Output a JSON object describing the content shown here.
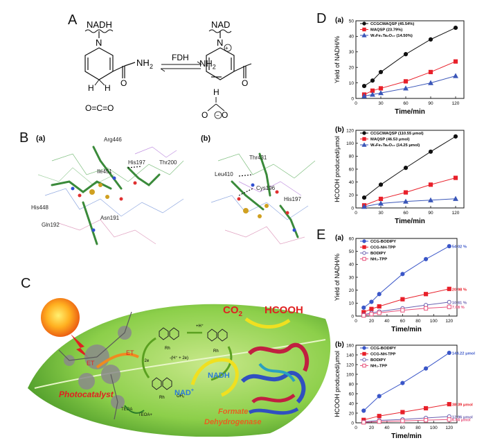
{
  "panel_a": {
    "letter": "A",
    "nadh": "NADH",
    "nad": "NAD",
    "nh2_left": "NH",
    "nh2_right": "NH",
    "sub2": "2",
    "n": "N",
    "h": "H",
    "o": "O",
    "enzyme": "FDH",
    "co2": "O=C=O",
    "plus": "+",
    "minus": "−"
  },
  "panel_b": {
    "letter": "B",
    "sub_a": "(a)",
    "sub_b": "(b)",
    "labels_a": [
      "Arg446",
      "Ile451",
      "His197",
      "Thr200",
      "His448",
      "Gln192",
      "Asn191"
    ],
    "labels_b": [
      "Thr431",
      "Leu410",
      "Cys196",
      "His197"
    ]
  },
  "panel_c": {
    "letter": "C",
    "co2": "CO",
    "co2_sub": "2",
    "hcooh": "HCOOH",
    "nadh": "NADH",
    "nad": "NAD",
    "nad_sup": "+",
    "et1": "ET",
    "et2": "ET",
    "photocatalyst": "Photocatalyst",
    "formate": "Formate",
    "dehydrogenase": "Dehydrogenase",
    "teoa": "TEOA",
    "teoa_plus": "TEOA+",
    "rh": "Rh",
    "plus_2e": "+2e",
    "plus_h": "+H⁺",
    "minus_h2e": "-(H⁺ + 2e)",
    "oh2": "OH₂"
  },
  "panel_d": {
    "letter": "D",
    "colors": {
      "black": "#111111",
      "red": "#e8202a",
      "blue": "#3a56b8"
    }
  },
  "panel_e": {
    "letter": "E",
    "colors": {
      "blue": "#3a56c8",
      "red": "#e8202a",
      "violet": "#6a60b0",
      "pink": "#e8507a"
    }
  },
  "chart_data": [
    {
      "id": "Da",
      "type": "line",
      "sublabel": "(a)",
      "xlabel": "Time/min",
      "ylabel": "Yield of NADH/%",
      "xlim": [
        0,
        130
      ],
      "ylim": [
        0,
        50
      ],
      "xticks": [
        0,
        30,
        60,
        90,
        120
      ],
      "yticks": [
        0,
        10,
        20,
        30,
        40,
        50
      ],
      "legend": "top-left",
      "series": [
        {
          "name": "CCGCMAQSP (45.54%)",
          "color": "#111111",
          "marker": "circle",
          "filled": true,
          "x": [
            10,
            20,
            30,
            60,
            90,
            120
          ],
          "y": [
            8,
            11.5,
            17,
            28.5,
            38,
            45.5
          ]
        },
        {
          "name": "MAQSP (23.79%)",
          "color": "#e8202a",
          "marker": "square",
          "filled": true,
          "x": [
            10,
            20,
            30,
            60,
            90,
            120
          ],
          "y": [
            2.5,
            5,
            6.5,
            11,
            17,
            23.8
          ]
        },
        {
          "name": "W₂Fe₄Ta₂O₁₇ (14.50%)",
          "color": "#3a56b8",
          "marker": "triangle",
          "filled": true,
          "x": [
            10,
            20,
            30,
            60,
            90,
            120
          ],
          "y": [
            1.5,
            2.5,
            3.5,
            6.5,
            10,
            14.5
          ]
        }
      ]
    },
    {
      "id": "Db",
      "type": "line",
      "sublabel": "(b)",
      "xlabel": "Time/min",
      "ylabel": "HCOOH produced/μmol",
      "xlim": [
        0,
        130
      ],
      "ylim": [
        0,
        120
      ],
      "xticks": [
        0,
        30,
        60,
        90,
        120
      ],
      "yticks": [
        0,
        20,
        40,
        60,
        80,
        100,
        120
      ],
      "legend": "top-left",
      "series": [
        {
          "name": "CCGCMAQSP (110.55 μmol)",
          "color": "#111111",
          "marker": "circle",
          "filled": true,
          "x": [
            10,
            30,
            60,
            90,
            120
          ],
          "y": [
            16,
            36,
            62,
            87,
            110.5
          ]
        },
        {
          "name": "MAQSP (46.53 μmol)",
          "color": "#e8202a",
          "marker": "square",
          "filled": true,
          "x": [
            10,
            30,
            60,
            90,
            120
          ],
          "y": [
            4,
            14,
            24,
            36,
            46.5
          ]
        },
        {
          "name": "W₂Fe₄Ta₂O₁₇ (14.25 μmol)",
          "color": "#3a56b8",
          "marker": "triangle",
          "filled": true,
          "x": [
            10,
            30,
            60,
            90,
            120
          ],
          "y": [
            2,
            7,
            10,
            12,
            14.2
          ]
        }
      ]
    },
    {
      "id": "Ea",
      "type": "line",
      "sublabel": "(a)",
      "xlabel": "Time/min",
      "ylabel": "Yield of NADH/%",
      "xlim": [
        0,
        130
      ],
      "ylim": [
        0,
        60
      ],
      "xticks": [
        0,
        20,
        40,
        60,
        80,
        100,
        120
      ],
      "yticks": [
        0,
        10,
        20,
        30,
        40,
        50,
        60
      ],
      "legend": "top-left",
      "series": [
        {
          "name": "CCG-BODIPY",
          "color": "#3a56c8",
          "marker": "circle",
          "filled": true,
          "end_label": "54.02 %",
          "x": [
            10,
            20,
            30,
            60,
            90,
            120
          ],
          "y": [
            6.5,
            11,
            17,
            32.5,
            44,
            54
          ]
        },
        {
          "name": "CCG-NH-TPP",
          "color": "#e8202a",
          "marker": "square",
          "filled": true,
          "end_label": "20.98 %",
          "x": [
            10,
            20,
            30,
            60,
            90,
            120
          ],
          "y": [
            3,
            5.5,
            7.5,
            13,
            17,
            21
          ]
        },
        {
          "name": "BODIPY",
          "color": "#6a60b0",
          "marker": "circle",
          "filled": false,
          "end_label": "10.81 %",
          "x": [
            10,
            20,
            30,
            60,
            90,
            120
          ],
          "y": [
            1,
            2.5,
            3.5,
            6,
            8.5,
            10.8
          ]
        },
        {
          "name": "NH₂-TPP",
          "color": "#e8507a",
          "marker": "square",
          "filled": false,
          "end_label": "7.08 %",
          "x": [
            10,
            20,
            30,
            60,
            90,
            120
          ],
          "y": [
            0.5,
            1.5,
            2.5,
            4.5,
            6,
            7.1
          ]
        }
      ]
    },
    {
      "id": "Eb",
      "type": "line",
      "sublabel": "(b)",
      "xlabel": "Time/min",
      "ylabel": "HCOOH produced/μmol",
      "xlim": [
        0,
        130
      ],
      "ylim": [
        0,
        160
      ],
      "xticks": [
        0,
        20,
        40,
        60,
        80,
        100,
        120
      ],
      "yticks": [
        0,
        20,
        40,
        60,
        80,
        100,
        120,
        140,
        160
      ],
      "legend": "top-left",
      "series": [
        {
          "name": "CCG-BODIPY",
          "color": "#3a56c8",
          "marker": "circle",
          "filled": true,
          "end_label": "144.22 μmol",
          "x": [
            10,
            30,
            60,
            90,
            120
          ],
          "y": [
            25,
            55,
            82,
            112,
            144.2
          ]
        },
        {
          "name": "CCG-NH-TPP",
          "color": "#e8202a",
          "marker": "square",
          "filled": true,
          "end_label": "38.39 μmol",
          "x": [
            10,
            30,
            60,
            90,
            120
          ],
          "y": [
            6,
            14,
            22,
            30,
            38.4
          ]
        },
        {
          "name": "BODIPY",
          "color": "#6a60b0",
          "marker": "circle",
          "filled": false,
          "end_label": "12.96 μmol",
          "x": [
            10,
            30,
            60,
            90,
            120
          ],
          "y": [
            2,
            5,
            7,
            10,
            13
          ]
        },
        {
          "name": "NH₂-TPP",
          "color": "#e8507a",
          "marker": "square",
          "filled": false,
          "end_label": "6.84 μmol",
          "x": [
            10,
            30,
            60,
            90,
            120
          ],
          "y": [
            1,
            2.5,
            4,
            5.5,
            6.8
          ]
        }
      ]
    }
  ]
}
